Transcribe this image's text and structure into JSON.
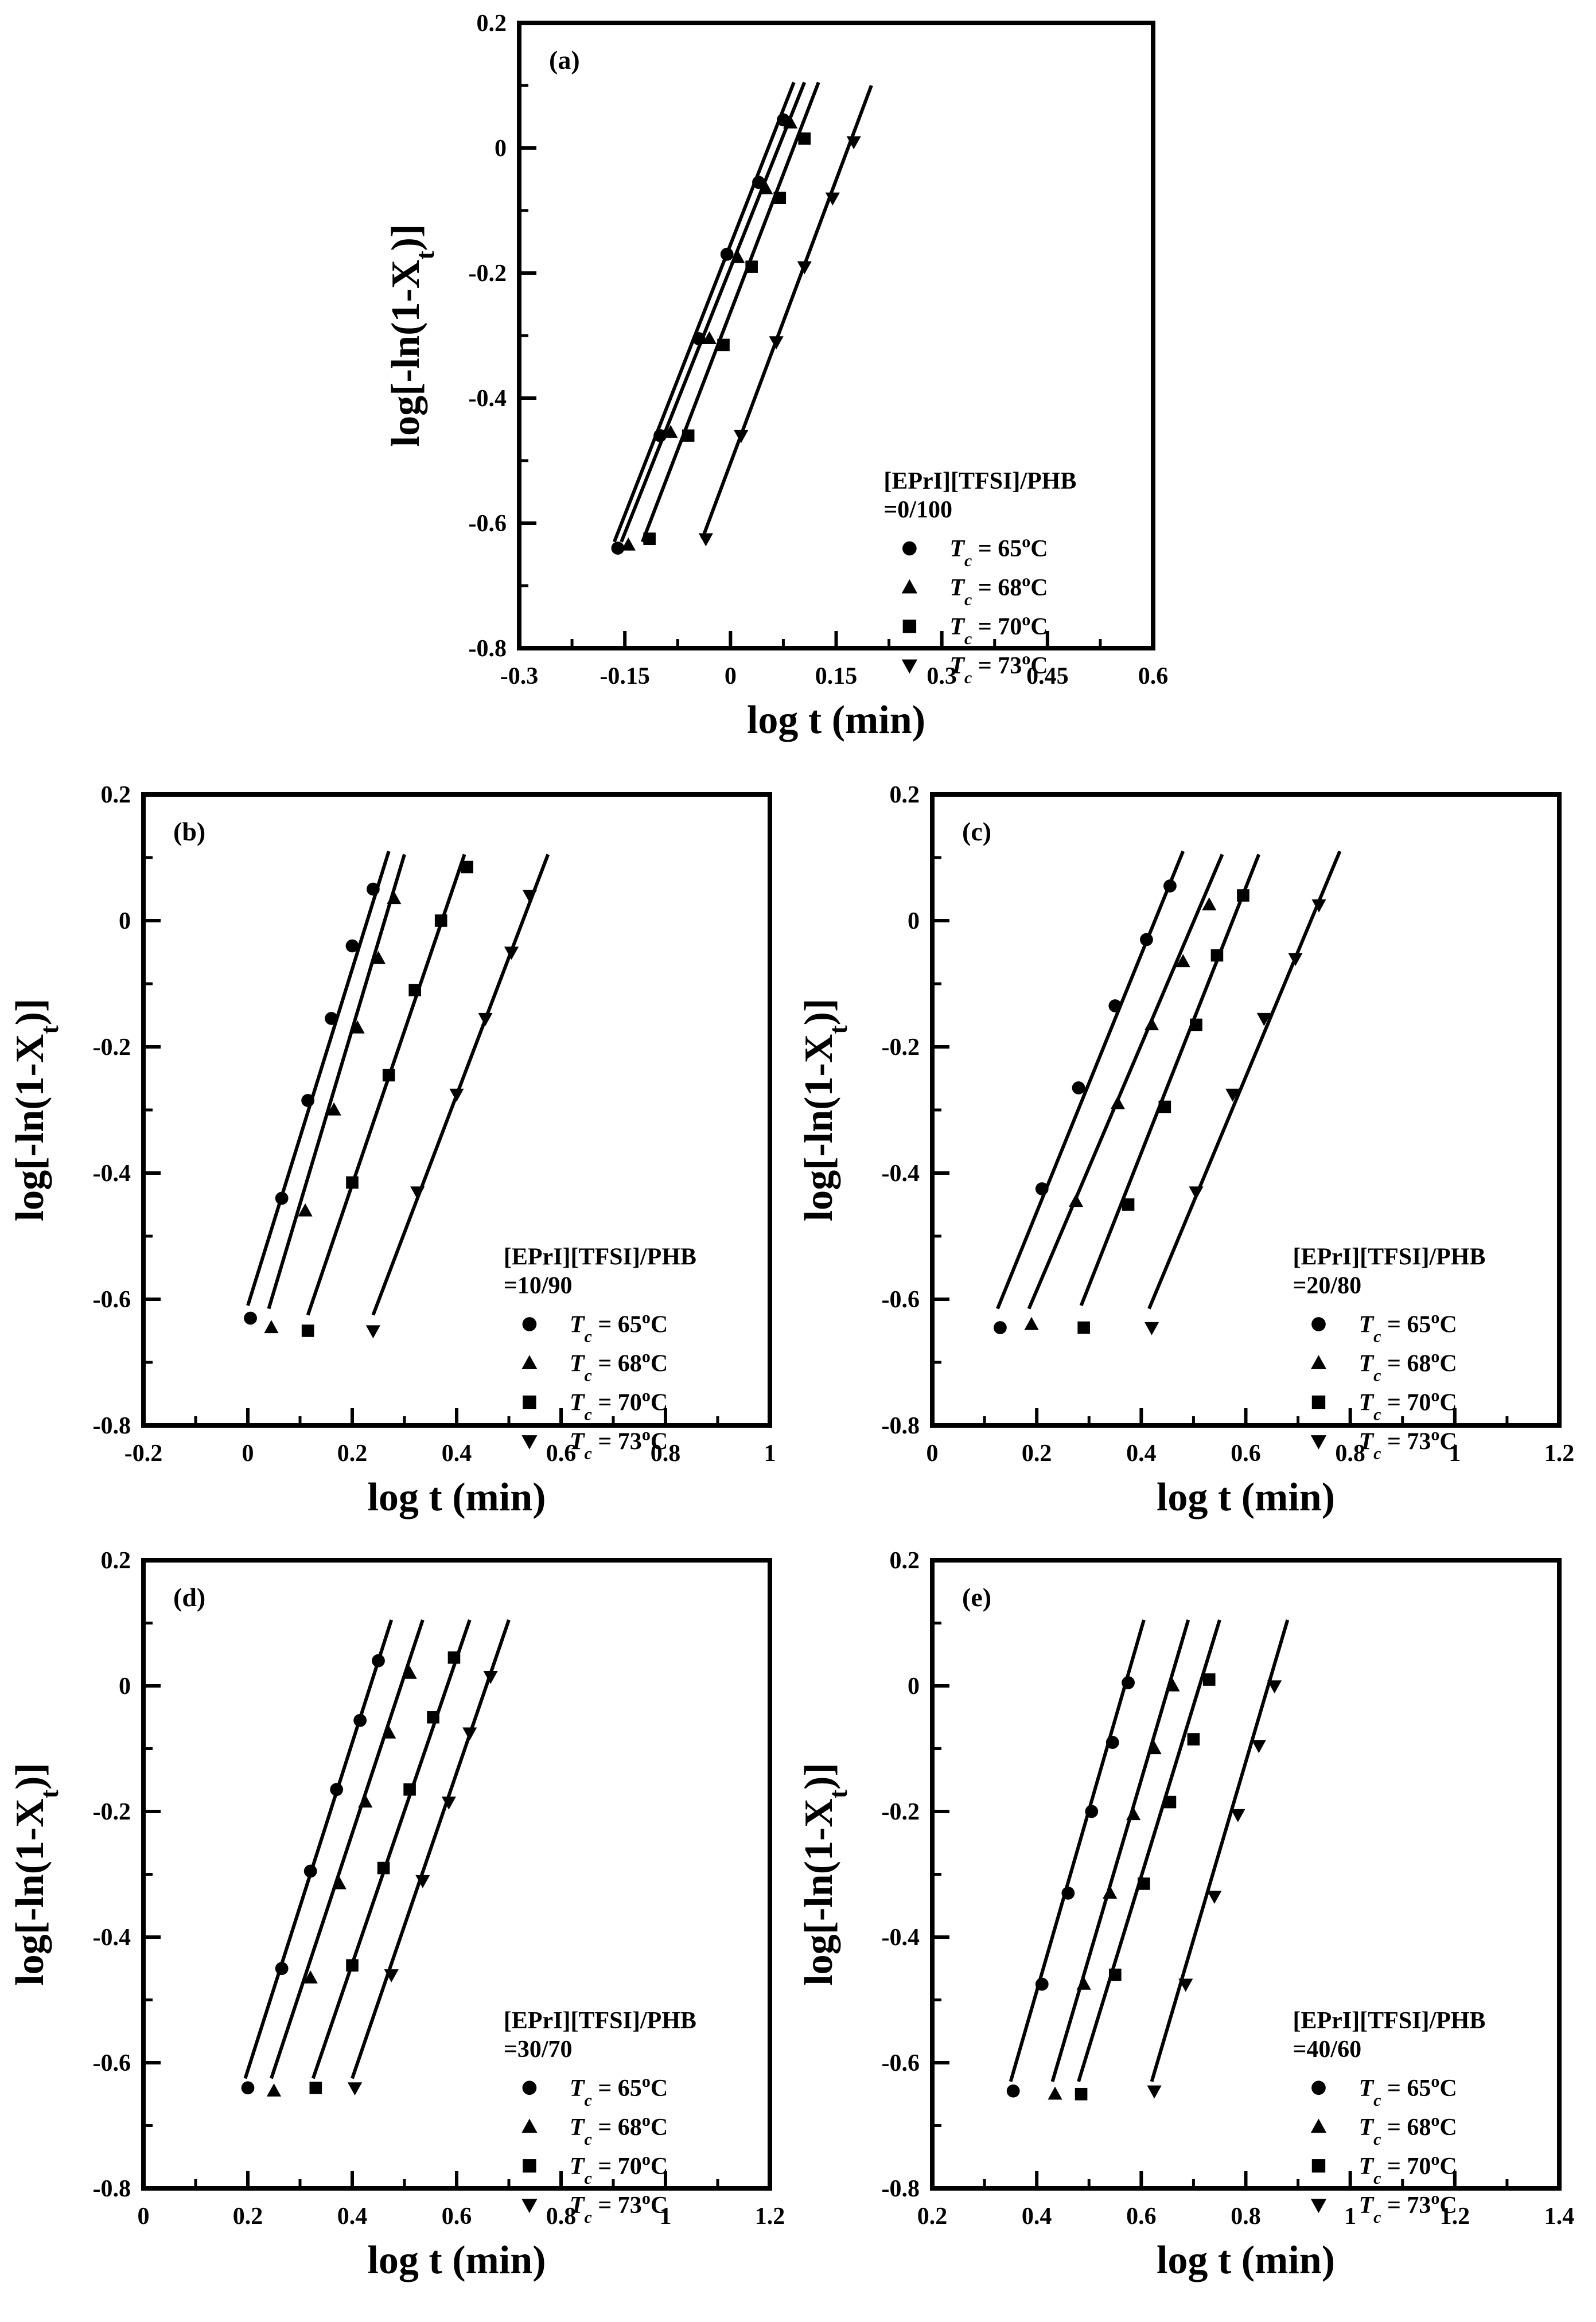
{
  "figure": {
    "colors": {
      "ink": "#000000",
      "background": "#ffffff"
    }
  },
  "chart_data": [
    {
      "type": "scatter",
      "panel": "(a)",
      "xlabel": "log t (min)",
      "ylabel": "log[-ln(1-X_t)]",
      "xlim": [
        -0.3,
        0.6
      ],
      "ylim": [
        -0.8,
        0.2
      ],
      "xticks": [
        -0.3,
        -0.15,
        0,
        0.15,
        0.3,
        0.45,
        0.6
      ],
      "xtick_labels": [
        "-0.3",
        "-0.15",
        "0",
        "0.15",
        "0.3",
        "0.45",
        "0.6"
      ],
      "yticks": [
        -0.8,
        -0.6,
        -0.4,
        -0.2,
        0,
        0.2
      ],
      "ytick_labels": [
        "-0.8",
        "-0.6",
        "-0.4",
        "-0.2",
        "0",
        "0.2"
      ],
      "legend_title": [
        "[EPrI][TFSI]/PHB",
        "=0/100"
      ],
      "legend_position": "lower-right",
      "series": [
        {
          "name": "Tc = 65oC",
          "tc": "65",
          "marker": "circle",
          "x": [
            -0.16,
            -0.1,
            -0.045,
            -0.005,
            0.04,
            0.075
          ],
          "y": [
            -0.64,
            -0.46,
            -0.305,
            -0.17,
            -0.055,
            0.045
          ],
          "fit": [
            [
              -0.165,
              -0.63
            ],
            [
              0.09,
              0.105
            ]
          ]
        },
        {
          "name": "Tc = 68oC",
          "tc": "68",
          "marker": "triangle-up",
          "x": [
            -0.145,
            -0.085,
            -0.03,
            0.01,
            0.05,
            0.085
          ],
          "y": [
            -0.635,
            -0.455,
            -0.305,
            -0.175,
            -0.065,
            0.04
          ],
          "fit": [
            [
              -0.155,
              -0.63
            ],
            [
              0.105,
              0.105
            ]
          ]
        },
        {
          "name": "Tc = 70oC",
          "tc": "70",
          "marker": "square",
          "x": [
            -0.115,
            -0.06,
            -0.01,
            0.03,
            0.07,
            0.105
          ],
          "y": [
            -0.625,
            -0.46,
            -0.315,
            -0.19,
            -0.08,
            0.015
          ],
          "fit": [
            [
              -0.125,
              -0.63
            ],
            [
              0.125,
              0.105
            ]
          ]
        },
        {
          "name": "Tc = 73oC",
          "tc": "73",
          "marker": "triangle-down",
          "x": [
            -0.035,
            0.015,
            0.065,
            0.105,
            0.145,
            0.175
          ],
          "y": [
            -0.625,
            -0.46,
            -0.31,
            -0.19,
            -0.08,
            0.01
          ],
          "fit": [
            [
              -0.04,
              -0.625
            ],
            [
              0.2,
              0.1
            ]
          ]
        }
      ]
    },
    {
      "type": "scatter",
      "panel": "(b)",
      "xlabel": "log t (min)",
      "ylabel": "log[-ln(1-X_t)]",
      "xlim": [
        -0.2,
        1.0
      ],
      "ylim": [
        -0.8,
        0.2
      ],
      "xticks": [
        -0.2,
        0,
        0.2,
        0.4,
        0.6,
        0.8,
        1.0
      ],
      "xtick_labels": [
        "-0.2",
        "0",
        "0.2",
        "0.4",
        "0.6",
        "0.8",
        "1"
      ],
      "yticks": [
        -0.8,
        -0.6,
        -0.4,
        -0.2,
        0,
        0.2
      ],
      "ytick_labels": [
        "-0.8",
        "-0.6",
        "-0.4",
        "-0.2",
        "0",
        "0.2"
      ],
      "legend_title": [
        "[EPrI][TFSI]/PHB",
        "=10/90"
      ],
      "legend_position": "lower-right",
      "series": [
        {
          "name": "Tc = 65oC",
          "tc": "65",
          "marker": "circle",
          "x": [
            0.005,
            0.065,
            0.115,
            0.16,
            0.2,
            0.24
          ],
          "y": [
            -0.63,
            -0.44,
            -0.285,
            -0.155,
            -0.04,
            0.05
          ],
          "fit": [
            [
              0.0,
              -0.61
            ],
            [
              0.27,
              0.11
            ]
          ]
        },
        {
          "name": "Tc = 68oC",
          "tc": "68",
          "marker": "triangle-up",
          "x": [
            0.045,
            0.11,
            0.165,
            0.21,
            0.25,
            0.28
          ],
          "y": [
            -0.645,
            -0.46,
            -0.3,
            -0.17,
            -0.06,
            0.035
          ],
          "fit": [
            [
              0.04,
              -0.615
            ],
            [
              0.3,
              0.105
            ]
          ]
        },
        {
          "name": "Tc = 70oC",
          "tc": "70",
          "marker": "square",
          "x": [
            0.115,
            0.2,
            0.27,
            0.32,
            0.37,
            0.42
          ],
          "y": [
            -0.65,
            -0.415,
            -0.245,
            -0.11,
            0.0,
            0.085
          ],
          "fit": [
            [
              0.115,
              -0.625
            ],
            [
              0.415,
              0.105
            ]
          ]
        },
        {
          "name": "Tc = 73oC",
          "tc": "73",
          "marker": "triangle-down",
          "x": [
            0.24,
            0.325,
            0.4,
            0.455,
            0.505,
            0.54
          ],
          "y": [
            -0.65,
            -0.43,
            -0.275,
            -0.155,
            -0.05,
            0.04
          ],
          "fit": [
            [
              0.24,
              -0.625
            ],
            [
              0.575,
              0.105
            ]
          ]
        }
      ]
    },
    {
      "type": "scatter",
      "panel": "(c)",
      "xlabel": "log t (min)",
      "ylabel": "log[-ln(1-X_t)]",
      "xlim": [
        0,
        1.2
      ],
      "ylim": [
        -0.8,
        0.2
      ],
      "xticks": [
        0,
        0.2,
        0.4,
        0.6,
        0.8,
        1.0,
        1.2
      ],
      "xtick_labels": [
        "0",
        "0.2",
        "0.4",
        "0.6",
        "0.8",
        "1",
        "1.2"
      ],
      "yticks": [
        -0.8,
        -0.6,
        -0.4,
        -0.2,
        0,
        0.2
      ],
      "ytick_labels": [
        "-0.8",
        "-0.6",
        "-0.4",
        "-0.2",
        "0",
        "0.2"
      ],
      "legend_title": [
        "[EPrI][TFSI]/PHB",
        "=20/80"
      ],
      "legend_position": "lower-right",
      "series": [
        {
          "name": "Tc = 65oC",
          "tc": "65",
          "marker": "circle",
          "x": [
            0.13,
            0.21,
            0.28,
            0.35,
            0.41,
            0.455
          ],
          "y": [
            -0.645,
            -0.425,
            -0.265,
            -0.135,
            -0.03,
            0.055
          ],
          "fit": [
            [
              0.125,
              -0.615
            ],
            [
              0.48,
              0.11
            ]
          ]
        },
        {
          "name": "Tc = 68oC",
          "tc": "68",
          "marker": "triangle-up",
          "x": [
            0.19,
            0.275,
            0.355,
            0.42,
            0.48,
            0.53
          ],
          "y": [
            -0.64,
            -0.445,
            -0.29,
            -0.165,
            -0.065,
            0.025
          ],
          "fit": [
            [
              0.185,
              -0.615
            ],
            [
              0.555,
              0.105
            ]
          ]
        },
        {
          "name": "Tc = 70oC",
          "tc": "70",
          "marker": "square",
          "x": [
            0.29,
            0.375,
            0.445,
            0.505,
            0.545,
            0.595
          ],
          "y": [
            -0.645,
            -0.45,
            -0.295,
            -0.165,
            -0.055,
            0.04
          ],
          "fit": [
            [
              0.285,
              -0.61
            ],
            [
              0.625,
              0.105
            ]
          ]
        },
        {
          "name": "Tc = 73oC",
          "tc": "73",
          "marker": "triangle-down",
          "x": [
            0.42,
            0.505,
            0.575,
            0.635,
            0.695,
            0.74
          ],
          "y": [
            -0.645,
            -0.43,
            -0.275,
            -0.155,
            -0.06,
            0.025
          ],
          "fit": [
            [
              0.415,
              -0.615
            ],
            [
              0.78,
              0.11
            ]
          ]
        }
      ]
    },
    {
      "type": "scatter",
      "panel": "(d)",
      "xlabel": "log t (min)",
      "ylabel": "log[-ln(1-X_t)]",
      "xlim": [
        0,
        1.2
      ],
      "ylim": [
        -0.8,
        0.2
      ],
      "xticks": [
        0,
        0.2,
        0.4,
        0.6,
        0.8,
        1.0,
        1.2
      ],
      "xtick_labels": [
        "0",
        "0.2",
        "0.4",
        "0.6",
        "0.8",
        "1",
        "1.2"
      ],
      "yticks": [
        -0.8,
        -0.6,
        -0.4,
        -0.2,
        0,
        0.2
      ],
      "ytick_labels": [
        "-0.8",
        "-0.6",
        "-0.4",
        "-0.2",
        "0",
        "0.2"
      ],
      "legend_title": [
        "[EPrI][TFSI]/PHB",
        "=30/70"
      ],
      "legend_position": "lower-right",
      "series": [
        {
          "name": "Tc = 65oC",
          "tc": "65",
          "marker": "circle",
          "x": [
            0.2,
            0.265,
            0.32,
            0.37,
            0.415,
            0.45
          ],
          "y": [
            -0.64,
            -0.45,
            -0.295,
            -0.165,
            -0.055,
            0.04
          ],
          "fit": [
            [
              0.195,
              -0.625
            ],
            [
              0.475,
              0.105
            ]
          ]
        },
        {
          "name": "Tc = 68oC",
          "tc": "68",
          "marker": "triangle-up",
          "x": [
            0.25,
            0.32,
            0.375,
            0.425,
            0.47,
            0.51
          ],
          "y": [
            -0.645,
            -0.465,
            -0.315,
            -0.185,
            -0.075,
            0.02
          ],
          "fit": [
            [
              0.245,
              -0.625
            ],
            [
              0.535,
              0.105
            ]
          ]
        },
        {
          "name": "Tc = 70oC",
          "tc": "70",
          "marker": "square",
          "x": [
            0.33,
            0.4,
            0.46,
            0.51,
            0.555,
            0.595
          ],
          "y": [
            -0.64,
            -0.445,
            -0.29,
            -0.165,
            -0.05,
            0.045
          ],
          "fit": [
            [
              0.325,
              -0.625
            ],
            [
              0.625,
              0.105
            ]
          ]
        },
        {
          "name": "Tc = 73oC",
          "tc": "73",
          "marker": "triangle-down",
          "x": [
            0.405,
            0.475,
            0.535,
            0.585,
            0.625,
            0.665
          ],
          "y": [
            -0.64,
            -0.46,
            -0.31,
            -0.185,
            -0.075,
            0.015
          ],
          "fit": [
            [
              0.4,
              -0.625
            ],
            [
              0.7,
              0.105
            ]
          ]
        }
      ]
    },
    {
      "type": "scatter",
      "panel": "(e)",
      "xlabel": "log t (min)",
      "ylabel": "log[-ln(1-X_t)]",
      "xlim": [
        0.2,
        1.4
      ],
      "ylim": [
        -0.8,
        0.2
      ],
      "xticks": [
        0.2,
        0.4,
        0.6,
        0.8,
        1.0,
        1.2,
        1.4
      ],
      "xtick_labels": [
        "0.2",
        "0.4",
        "0.6",
        "0.8",
        "1",
        "1.2",
        "1.4"
      ],
      "yticks": [
        -0.8,
        -0.6,
        -0.4,
        -0.2,
        0,
        0.2
      ],
      "ytick_labels": [
        "-0.8",
        "-0.6",
        "-0.4",
        "-0.2",
        "0",
        "0.2"
      ],
      "legend_title": [
        "[EPrI][TFSI]/PHB",
        "=40/60"
      ],
      "legend_position": "lower-right",
      "series": [
        {
          "name": "Tc = 65oC",
          "tc": "65",
          "marker": "circle",
          "x": [
            0.355,
            0.41,
            0.46,
            0.505,
            0.545,
            0.575
          ],
          "y": [
            -0.645,
            -0.475,
            -0.33,
            -0.2,
            -0.09,
            0.005
          ],
          "fit": [
            [
              0.35,
              -0.63
            ],
            [
              0.605,
              0.105
            ]
          ]
        },
        {
          "name": "Tc = 68oC",
          "tc": "68",
          "marker": "triangle-up",
          "x": [
            0.435,
            0.49,
            0.54,
            0.585,
            0.625,
            0.66
          ],
          "y": [
            -0.65,
            -0.475,
            -0.33,
            -0.205,
            -0.1,
            0.0
          ],
          "fit": [
            [
              0.43,
              -0.63
            ],
            [
              0.69,
              0.105
            ]
          ]
        },
        {
          "name": "Tc = 70oC",
          "tc": "70",
          "marker": "square",
          "x": [
            0.485,
            0.55,
            0.605,
            0.655,
            0.7,
            0.73
          ],
          "y": [
            -0.65,
            -0.46,
            -0.315,
            -0.185,
            -0.085,
            0.01
          ],
          "fit": [
            [
              0.48,
              -0.63
            ],
            [
              0.75,
              0.105
            ]
          ]
        },
        {
          "name": "Tc = 73oC",
          "tc": "73",
          "marker": "triangle-down",
          "x": [
            0.625,
            0.685,
            0.74,
            0.785,
            0.825,
            0.855
          ],
          "y": [
            -0.645,
            -0.475,
            -0.335,
            -0.205,
            -0.095,
            0.0
          ],
          "fit": [
            [
              0.62,
              -0.63
            ],
            [
              0.88,
              0.105
            ]
          ]
        }
      ]
    }
  ]
}
